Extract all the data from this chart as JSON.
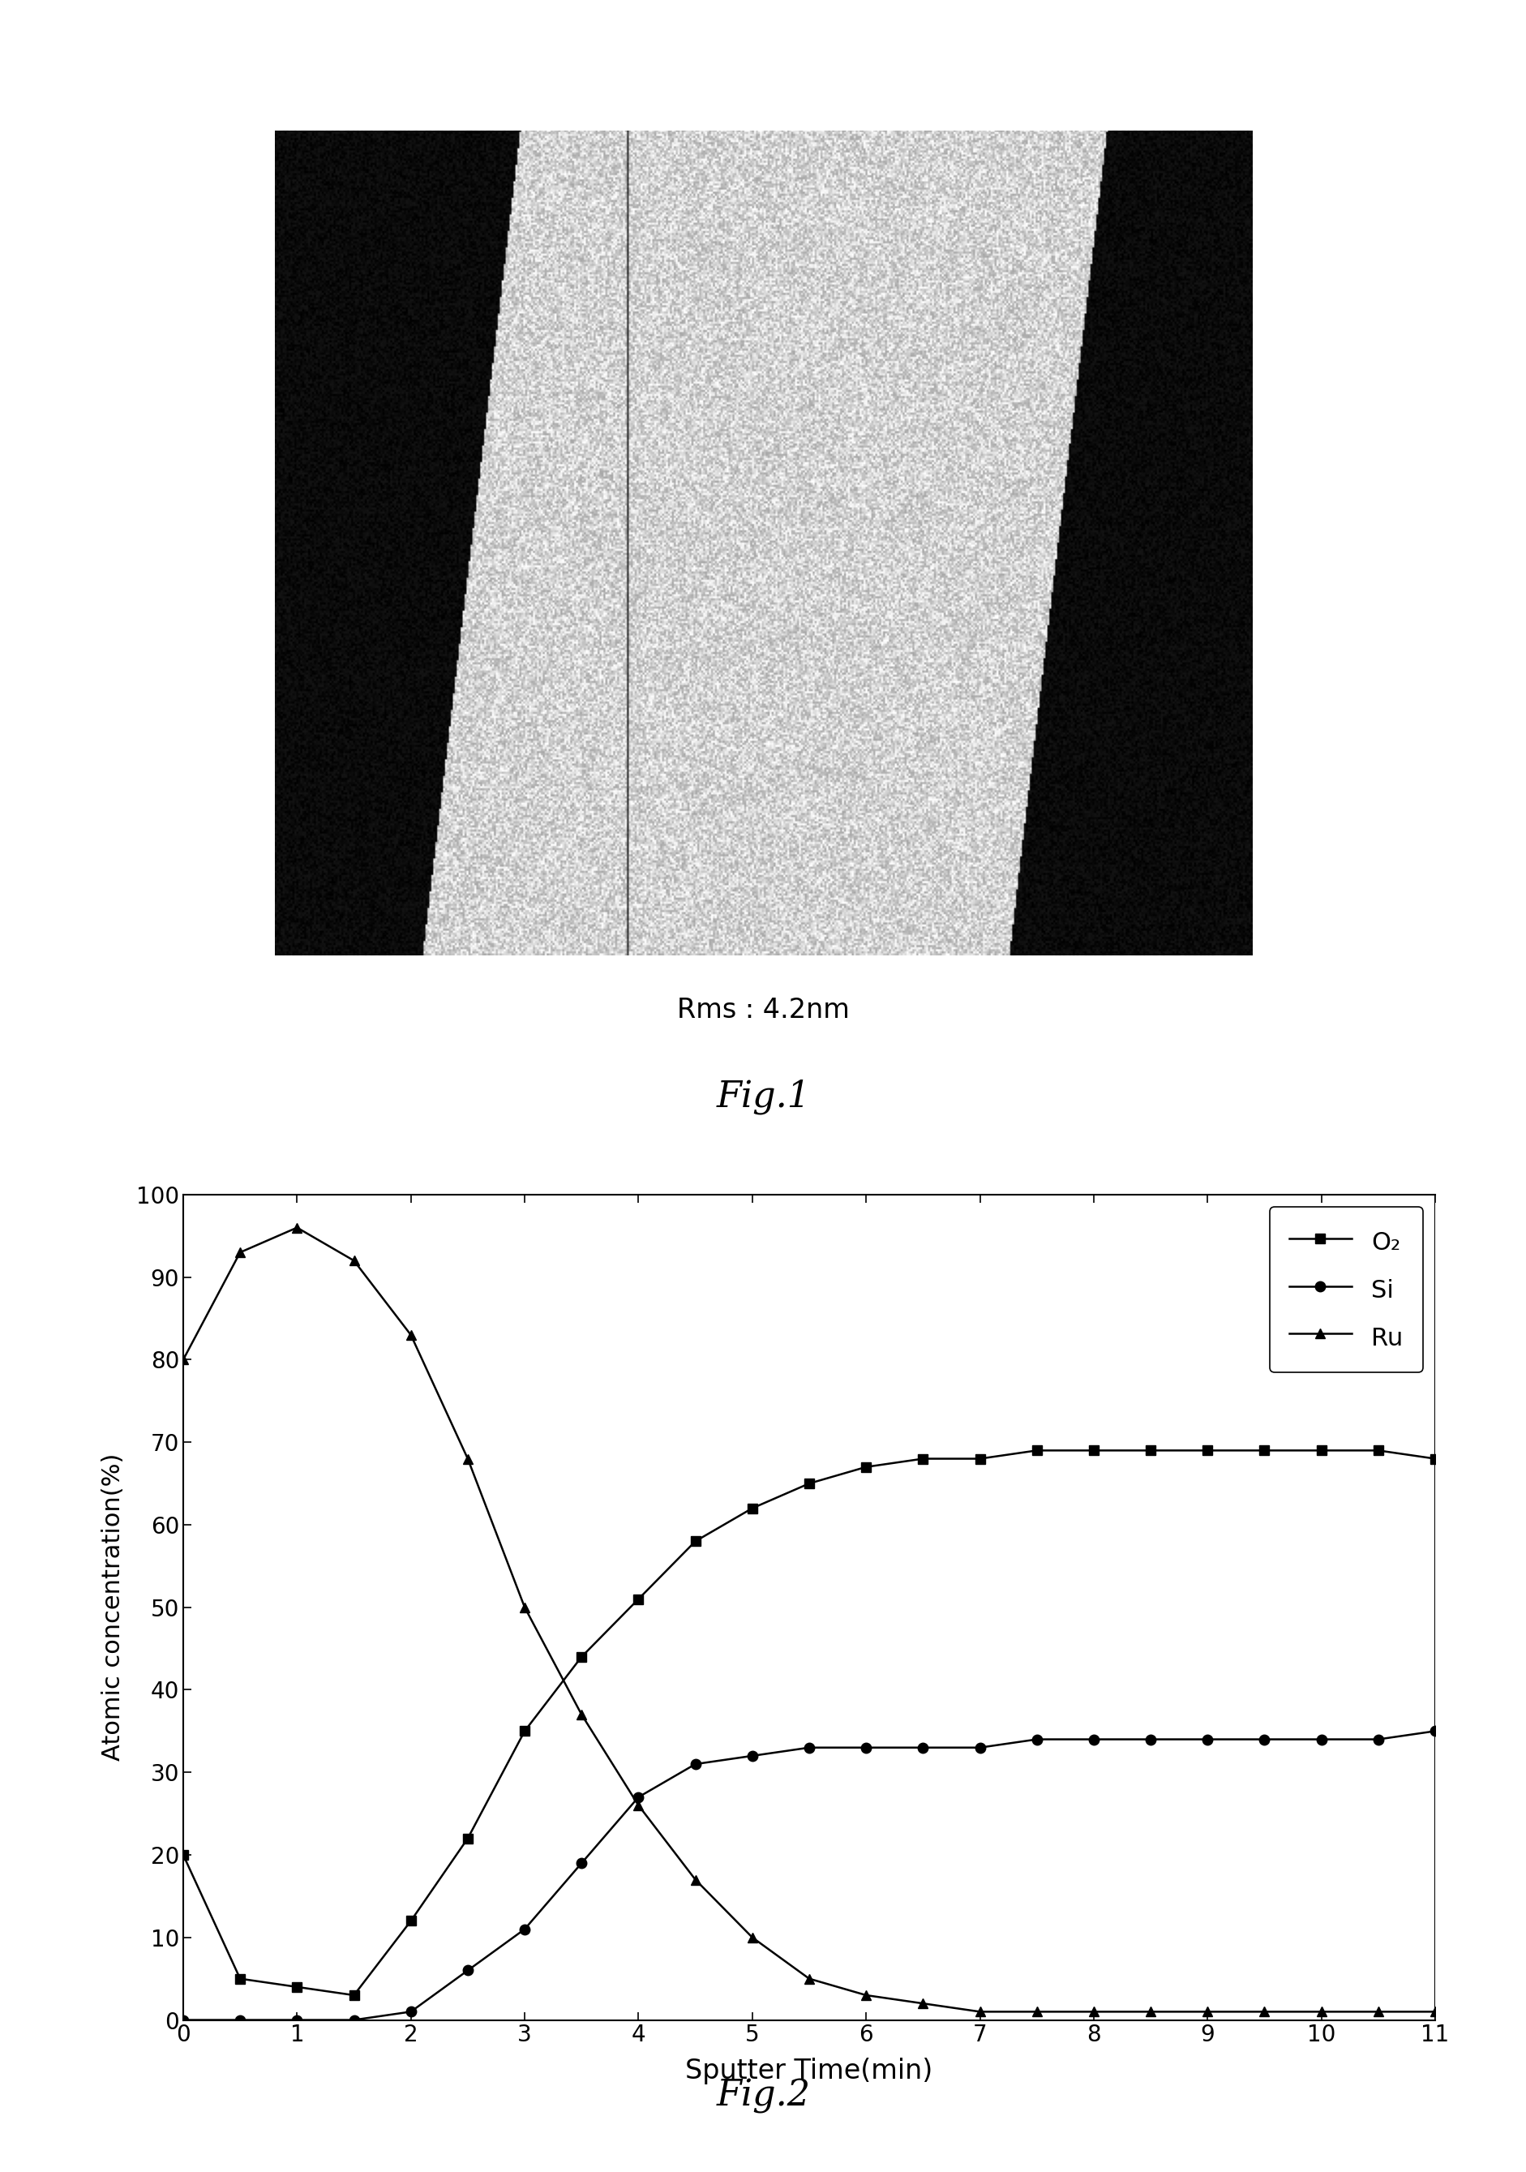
{
  "fig1_label": "Fig.1",
  "rms_label": "Rms : 4.2nm",
  "fig2_label": "Fig.2",
  "xlabel": "Sputter Time(min)",
  "ylabel": "Atomic concentration(%)",
  "xlim": [
    0,
    11
  ],
  "ylim": [
    0,
    100
  ],
  "xticks": [
    0,
    1,
    2,
    3,
    4,
    5,
    6,
    7,
    8,
    9,
    10,
    11
  ],
  "yticks": [
    0,
    10,
    20,
    30,
    40,
    50,
    60,
    70,
    80,
    90,
    100
  ],
  "legend_labels": [
    "O₂",
    "Si",
    "Ru"
  ],
  "marker_color": "#000000",
  "line_color": "#000000",
  "background": "#ffffff",
  "O2_x": [
    0,
    0.5,
    1,
    1.5,
    2,
    2.5,
    3,
    3.5,
    4,
    4.5,
    5,
    5.5,
    6,
    6.5,
    7,
    7.5,
    8,
    8.5,
    9,
    9.5,
    10,
    10.5,
    11
  ],
  "O2_y": [
    20,
    5,
    4,
    3,
    12,
    22,
    35,
    44,
    51,
    58,
    62,
    65,
    67,
    68,
    68,
    69,
    69,
    69,
    69,
    69,
    69,
    69,
    68
  ],
  "Si_x": [
    0,
    0.5,
    1,
    1.5,
    2,
    2.5,
    3,
    3.5,
    4,
    4.5,
    5,
    5.5,
    6,
    6.5,
    7,
    7.5,
    8,
    8.5,
    9,
    9.5,
    10,
    10.5,
    11
  ],
  "Si_y": [
    0,
    0,
    0,
    0,
    1,
    6,
    11,
    19,
    27,
    31,
    32,
    33,
    33,
    33,
    33,
    34,
    34,
    34,
    34,
    34,
    34,
    34,
    35
  ],
  "Ru_x": [
    0,
    0.5,
    1,
    1.5,
    2,
    2.5,
    3,
    3.5,
    4,
    4.5,
    5,
    5.5,
    6,
    6.5,
    7,
    7.5,
    8,
    8.5,
    9,
    9.5,
    10,
    10.5,
    11
  ],
  "Ru_y": [
    80,
    93,
    96,
    92,
    83,
    68,
    50,
    37,
    26,
    17,
    10,
    5,
    3,
    2,
    1,
    1,
    1,
    1,
    1,
    1,
    1,
    1,
    1
  ],
  "fig_width": 18.83,
  "fig_height": 26.78,
  "title_fontsize": 32,
  "label_fontsize": 22,
  "tick_fontsize": 20,
  "legend_fontsize": 22,
  "rms_fontsize": 24
}
